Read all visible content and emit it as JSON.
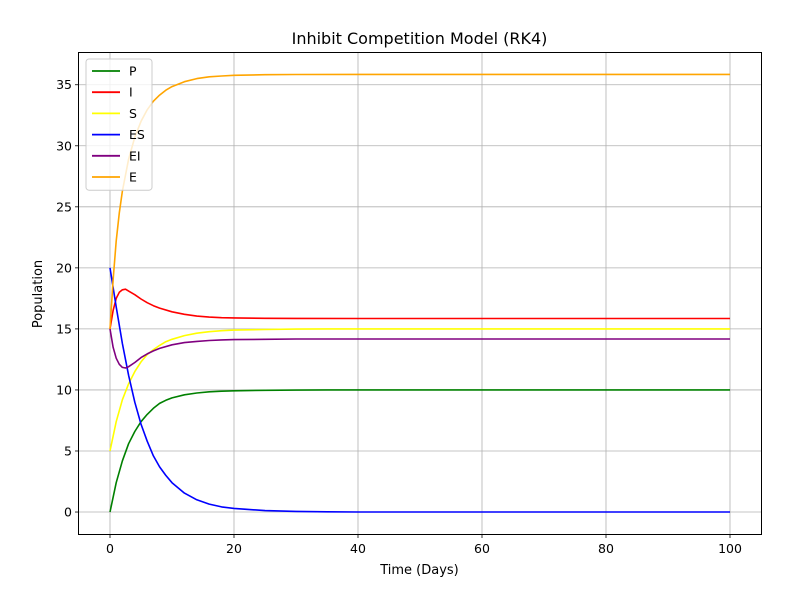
{
  "chart_data": {
    "type": "line",
    "title": "Inhibit Competition Model (RK4)",
    "xlabel": "Time (Days)",
    "ylabel": "Population",
    "xlim": [
      -5,
      105
    ],
    "ylim": [
      -1.8,
      37.6
    ],
    "xticks": [
      0,
      20,
      40,
      60,
      80,
      100
    ],
    "yticks": [
      0,
      5,
      10,
      15,
      20,
      25,
      30,
      35
    ],
    "grid": true,
    "legend": "upper-left",
    "series": [
      {
        "name": "P",
        "color": "#008000",
        "x": [
          0,
          1,
          2,
          3,
          4,
          5,
          6,
          7,
          8,
          9,
          10,
          12,
          14,
          16,
          18,
          20,
          25,
          30,
          35,
          40,
          50,
          60,
          70,
          80,
          90,
          100
        ],
        "y": [
          0,
          2.4,
          4.2,
          5.6,
          6.6,
          7.4,
          8.0,
          8.5,
          8.9,
          9.15,
          9.35,
          9.6,
          9.75,
          9.85,
          9.9,
          9.93,
          9.97,
          9.99,
          10,
          10,
          10,
          10,
          10,
          10,
          10,
          10
        ]
      },
      {
        "name": "I",
        "color": "#ff0000",
        "x": [
          0,
          0.5,
          1,
          1.5,
          2,
          2.5,
          3,
          4,
          5,
          6,
          7,
          8,
          10,
          12,
          14,
          16,
          18,
          20,
          25,
          30,
          40,
          50,
          60,
          80,
          100
        ],
        "y": [
          15,
          16.5,
          17.5,
          18.0,
          18.2,
          18.25,
          18.1,
          17.8,
          17.45,
          17.15,
          16.9,
          16.7,
          16.4,
          16.2,
          16.05,
          15.97,
          15.92,
          15.9,
          15.87,
          15.86,
          15.85,
          15.85,
          15.85,
          15.85,
          15.85
        ]
      },
      {
        "name": "S",
        "color": "#ffff00",
        "x": [
          0,
          1,
          2,
          3,
          4,
          5,
          6,
          7,
          8,
          9,
          10,
          12,
          14,
          16,
          18,
          20,
          25,
          30,
          35,
          40,
          50,
          60,
          70,
          80,
          90,
          100
        ],
        "y": [
          5,
          7.4,
          9.2,
          10.5,
          11.5,
          12.3,
          12.9,
          13.3,
          13.65,
          13.95,
          14.15,
          14.45,
          14.65,
          14.77,
          14.85,
          14.9,
          14.95,
          14.98,
          15,
          15,
          15,
          15,
          15,
          15,
          15,
          15
        ]
      },
      {
        "name": "ES",
        "color": "#0000ff",
        "x": [
          0,
          1,
          2,
          3,
          4,
          5,
          6,
          7,
          8,
          9,
          10,
          12,
          14,
          16,
          18,
          20,
          25,
          30,
          35,
          40,
          50,
          60,
          70,
          80,
          90,
          100
        ],
        "y": [
          20,
          16.8,
          13.8,
          11.2,
          9.0,
          7.2,
          5.8,
          4.6,
          3.7,
          3.0,
          2.4,
          1.55,
          1.0,
          0.65,
          0.42,
          0.3,
          0.12,
          0.05,
          0.02,
          0,
          0,
          0,
          0,
          0,
          0,
          0
        ]
      },
      {
        "name": "EI",
        "color": "#800080",
        "x": [
          0,
          0.5,
          1,
          1.5,
          2,
          2.5,
          3,
          4,
          5,
          6,
          7,
          8,
          10,
          12,
          14,
          16,
          18,
          20,
          25,
          30,
          40,
          50,
          60,
          80,
          100
        ],
        "y": [
          15,
          13.5,
          12.6,
          12.1,
          11.85,
          11.8,
          11.9,
          12.25,
          12.65,
          12.95,
          13.2,
          13.4,
          13.7,
          13.88,
          13.98,
          14.05,
          14.1,
          14.12,
          14.15,
          14.17,
          14.17,
          14.17,
          14.17,
          14.17,
          14.17
        ]
      },
      {
        "name": "E",
        "color": "#ffa500",
        "x": [
          0,
          0.5,
          1,
          1.5,
          2,
          3,
          4,
          5,
          6,
          7,
          8,
          9,
          10,
          12,
          14,
          16,
          18,
          20,
          25,
          30,
          40,
          50,
          60,
          80,
          100
        ],
        "y": [
          15,
          19,
          22.2,
          24.5,
          26.3,
          28.9,
          30.7,
          32.0,
          32.95,
          33.65,
          34.15,
          34.55,
          34.85,
          35.25,
          35.5,
          35.65,
          35.72,
          35.77,
          35.82,
          35.84,
          35.85,
          35.85,
          35.85,
          35.85,
          35.85
        ]
      }
    ]
  }
}
